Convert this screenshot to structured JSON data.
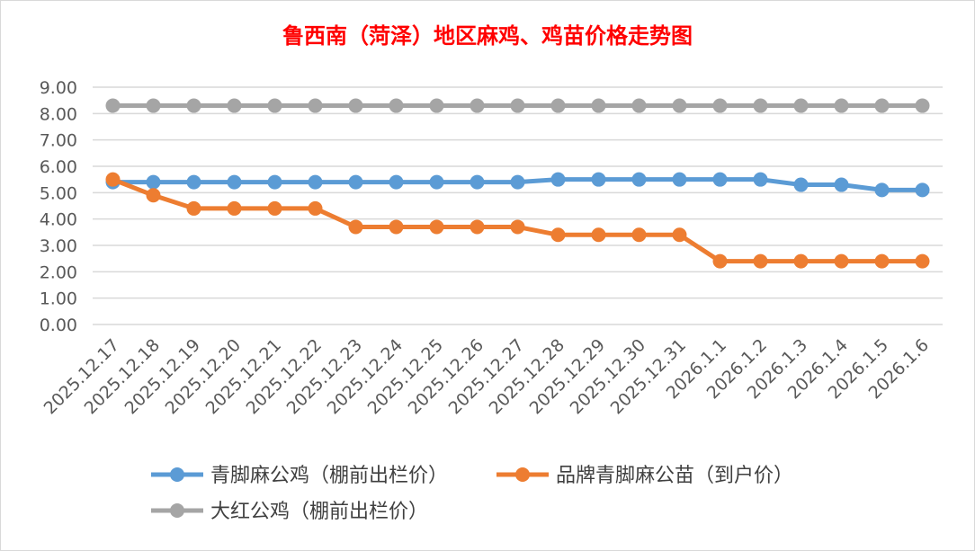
{
  "chart_data": {
    "type": "line",
    "title": "鲁西南（菏泽）地区麻鸡、鸡苗价格走势图",
    "title_color": "#FF0000",
    "categories": [
      "2025.12.17",
      "2025.12.18",
      "2025.12.19",
      "2025.12.20",
      "2025.12.21",
      "2025.12.22",
      "2025.12.23",
      "2025.12.24",
      "2025.12.25",
      "2025.12.26",
      "2025.12.27",
      "2025.12.28",
      "2025.12.29",
      "2025.12.30",
      "2025.12.31",
      "2026.1.1",
      "2026.1.2",
      "2026.1.3",
      "2026.1.4",
      "2026.1.5",
      "2026.1.6"
    ],
    "ylim": [
      0,
      9
    ],
    "yticks": [
      "0.00",
      "1.00",
      "2.00",
      "3.00",
      "4.00",
      "5.00",
      "6.00",
      "7.00",
      "8.00",
      "9.00"
    ],
    "grid": true,
    "legend_position": "bottom",
    "series": [
      {
        "name": "青脚麻公鸡（棚前出栏价）",
        "color": "#5B9BD5",
        "values": [
          5.4,
          5.4,
          5.4,
          5.4,
          5.4,
          5.4,
          5.4,
          5.4,
          5.4,
          5.4,
          5.4,
          5.5,
          5.5,
          5.5,
          5.5,
          5.5,
          5.5,
          5.3,
          5.3,
          5.1,
          5.1
        ]
      },
      {
        "name": "品牌青脚麻公苗（到户价）",
        "color": "#ED7D31",
        "values": [
          5.5,
          4.9,
          4.4,
          4.4,
          4.4,
          4.4,
          3.7,
          3.7,
          3.7,
          3.7,
          3.7,
          3.4,
          3.4,
          3.4,
          3.4,
          2.4,
          2.4,
          2.4,
          2.4,
          2.4,
          2.4
        ]
      },
      {
        "name": "大红公鸡（棚前出栏价）",
        "color": "#A5A5A5",
        "values": [
          8.3,
          8.3,
          8.3,
          8.3,
          8.3,
          8.3,
          8.3,
          8.3,
          8.3,
          8.3,
          8.3,
          8.3,
          8.3,
          8.3,
          8.3,
          8.3,
          8.3,
          8.3,
          8.3,
          8.3,
          8.3
        ]
      }
    ]
  }
}
